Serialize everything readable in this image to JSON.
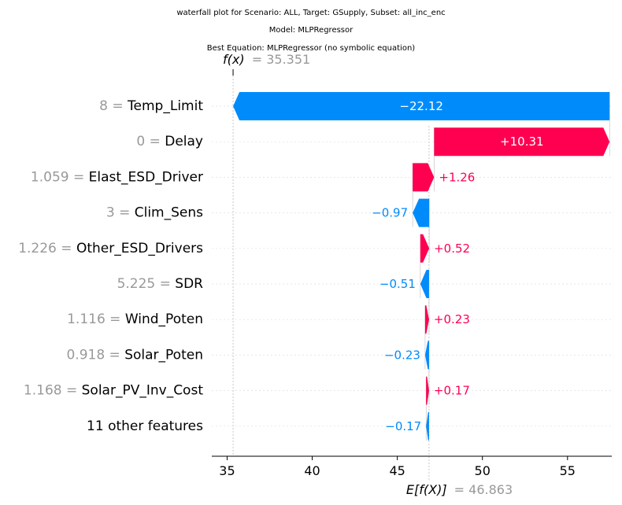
{
  "title": {
    "line1": "waterfall plot for Scenario: ALL, Target: GSupply, Subset: all_inc_enc",
    "line2": "Model: MLPRegressor",
    "line3": "Best Equation: MLPRegressor (no symbolic equation)"
  },
  "colors": {
    "positive": "#ff0051",
    "negative": "#008bfb",
    "grey_text": "#999999"
  },
  "chart_data": {
    "type": "waterfall",
    "fx_label": "f(x)",
    "fx_value": 35.351,
    "fx_text": "= 35.351",
    "base_label": "E[f(X)]",
    "base_value": 46.863,
    "base_text": "= 46.863",
    "xlim": [
      34.1,
      57.6
    ],
    "xticks": [
      35,
      40,
      45,
      50,
      55
    ],
    "features": [
      {
        "name": "Temp_Limit",
        "value": "8",
        "contribution": -22.12,
        "label": "−22.12"
      },
      {
        "name": "Delay",
        "value": "0",
        "contribution": 10.31,
        "label": "+10.31"
      },
      {
        "name": "Elast_ESD_Driver",
        "value": "1.059",
        "contribution": 1.26,
        "label": "+1.26"
      },
      {
        "name": "Clim_Sens",
        "value": "3",
        "contribution": -0.97,
        "label": "−0.97"
      },
      {
        "name": "Other_ESD_Drivers",
        "value": "1.226",
        "contribution": 0.52,
        "label": "+0.52"
      },
      {
        "name": "SDR",
        "value": "5.225",
        "contribution": -0.51,
        "label": "−0.51"
      },
      {
        "name": "Wind_Poten",
        "value": "1.116",
        "contribution": 0.23,
        "label": "+0.23"
      },
      {
        "name": "Solar_Poten",
        "value": "0.918",
        "contribution": -0.23,
        "label": "−0.23"
      },
      {
        "name": "Solar_PV_Inv_Cost",
        "value": "1.168",
        "contribution": 0.17,
        "label": "+0.17"
      },
      {
        "name": "11 other features",
        "value": "",
        "contribution": -0.17,
        "label": "−0.17"
      }
    ]
  }
}
